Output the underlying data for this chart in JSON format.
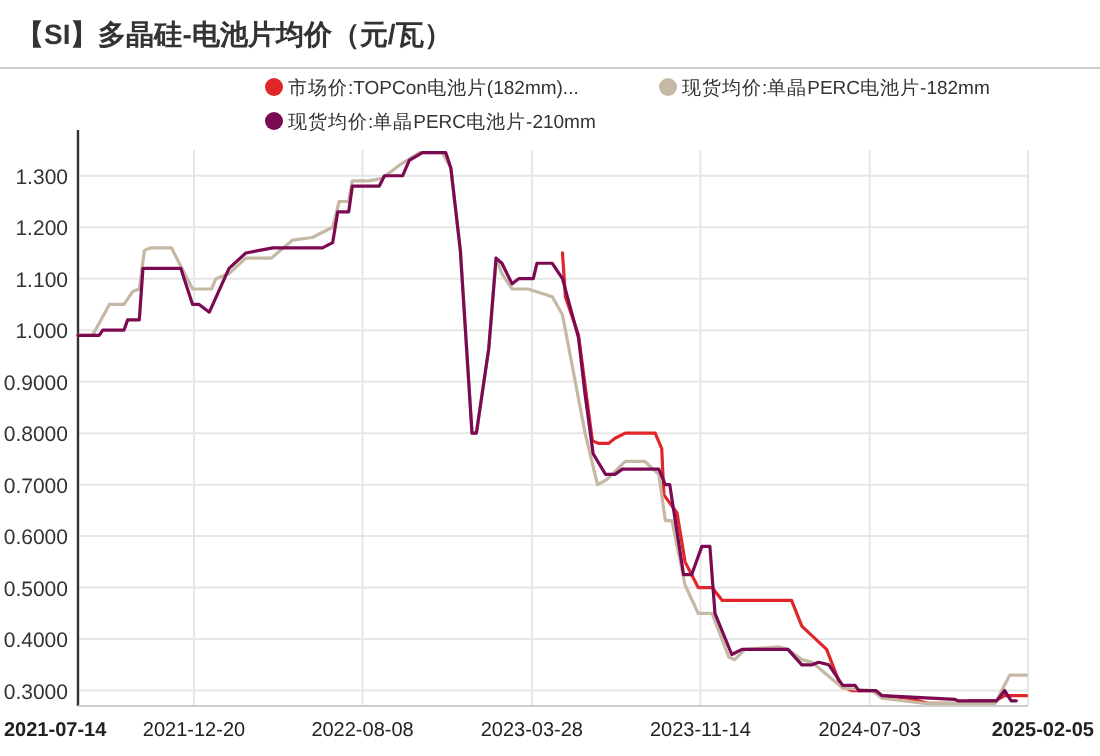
{
  "chart_data": {
    "type": "line",
    "title": "【SI】多晶硅-电池片均价（元/瓦）",
    "xlim": [
      "2021-07-14",
      "2025-02-05"
    ],
    "xticks": [
      "2021-07-14",
      "2021-12-20",
      "2022-08-08",
      "2023-03-28",
      "2023-11-14",
      "2024-07-03",
      "2025-02-05"
    ],
    "ylim": [
      0.27,
      1.35
    ],
    "yticks": [
      {
        "value": 0.3,
        "label": "0.3000"
      },
      {
        "value": 0.4,
        "label": "0.4000"
      },
      {
        "value": 0.5,
        "label": "0.5000"
      },
      {
        "value": 0.6,
        "label": "0.6000"
      },
      {
        "value": 0.7,
        "label": "0.7000"
      },
      {
        "value": 0.8,
        "label": "0.8000"
      },
      {
        "value": 0.9,
        "label": "0.9000"
      },
      {
        "value": 1.0,
        "label": "1.000"
      },
      {
        "value": 1.1,
        "label": "1.100"
      },
      {
        "value": 1.2,
        "label": "1.200"
      },
      {
        "value": 1.3,
        "label": "1.300"
      }
    ],
    "grid": true,
    "legend": "top",
    "line_style": "solid",
    "marker": "none",
    "series": [
      {
        "name": "市场价:TOPCon电池片(182mm)...",
        "color": "#e0262a",
        "x": [
          "2023-05-09",
          "2023-05-13",
          "2023-05-31",
          "2023-06-19",
          "2023-06-28",
          "2023-07-11",
          "2023-07-20",
          "2023-08-03",
          "2023-09-13",
          "2023-09-22",
          "2023-09-25",
          "2023-10-13",
          "2023-10-24",
          "2023-11-11",
          "2023-11-30",
          "2023-12-14",
          "2024-03-18",
          "2024-04-01",
          "2024-05-05",
          "2024-05-24",
          "2024-06-08",
          "2024-07-11",
          "2024-07-20",
          "2024-08-25",
          "2024-09-21",
          "2024-11-11",
          "2024-11-15",
          "2024-12-22",
          "2025-01-04",
          "2025-02-03"
        ],
        "values": [
          1.15,
          1.065,
          0.99,
          0.785,
          0.78,
          0.78,
          0.79,
          0.8,
          0.8,
          0.77,
          0.68,
          0.645,
          0.55,
          0.5,
          0.5,
          0.475,
          0.475,
          0.425,
          0.38,
          0.31,
          0.3,
          0.3,
          0.29,
          0.285,
          0.275,
          0.275,
          0.28,
          0.28,
          0.29,
          0.29
        ]
      },
      {
        "name": "现货均价:单晶PERC电池片-182mm",
        "color": "#c5b8a5",
        "x": [
          "2021-07-14",
          "2021-08-03",
          "2021-08-26",
          "2021-09-15",
          "2021-09-27",
          "2021-10-06",
          "2021-10-13",
          "2021-10-22",
          "2021-11-19",
          "2021-12-18",
          "2022-01-13",
          "2022-01-19",
          "2022-02-06",
          "2022-03-01",
          "2022-04-05",
          "2022-05-04",
          "2022-05-31",
          "2022-06-28",
          "2022-07-07",
          "2022-07-20",
          "2022-07-25",
          "2022-08-17",
          "2022-09-04",
          "2022-09-27",
          "2022-10-25",
          "2022-11-25",
          "2022-12-07",
          "2022-12-20",
          "2023-01-05",
          "2023-01-11",
          "2023-01-28",
          "2023-02-07",
          "2023-02-15",
          "2023-03-01",
          "2023-03-23",
          "2023-04-25",
          "2023-05-09",
          "2023-06-09",
          "2023-06-26",
          "2023-07-09",
          "2023-08-03",
          "2023-08-30",
          "2023-09-18",
          "2023-09-27",
          "2023-10-06",
          "2023-10-24",
          "2023-11-11",
          "2023-11-30",
          "2023-12-23",
          "2023-12-31",
          "2024-01-14",
          "2024-02-29",
          "2024-03-13",
          "2024-04-01",
          "2024-04-15",
          "2024-05-27",
          "2024-07-06",
          "2024-07-20",
          "2024-09-17",
          "2024-11-11",
          "2024-12-22",
          "2024-12-31",
          "2025-01-11",
          "2025-02-03"
        ],
        "values": [
          0.99,
          0.99,
          1.05,
          1.05,
          1.075,
          1.08,
          1.155,
          1.16,
          1.16,
          1.08,
          1.08,
          1.1,
          1.11,
          1.14,
          1.14,
          1.175,
          1.18,
          1.2,
          1.25,
          1.25,
          1.29,
          1.29,
          1.295,
          1.32,
          1.345,
          1.345,
          1.315,
          1.155,
          0.8,
          0.8,
          0.965,
          1.14,
          1.11,
          1.08,
          1.08,
          1.065,
          1.03,
          0.8,
          0.7,
          0.71,
          0.745,
          0.745,
          0.72,
          0.63,
          0.63,
          0.505,
          0.45,
          0.45,
          0.365,
          0.36,
          0.38,
          0.385,
          0.38,
          0.36,
          0.355,
          0.305,
          0.3,
          0.285,
          0.275,
          0.275,
          0.275,
          0.3,
          0.33,
          0.33
        ]
      },
      {
        "name": "现货均价:单晶PERC电池片-210mm",
        "color": "#7b0a52",
        "x": [
          "2021-07-14",
          "2021-08-12",
          "2021-08-17",
          "2021-09-15",
          "2021-09-20",
          "2021-10-06",
          "2021-10-11",
          "2021-12-02",
          "2021-12-18",
          "2021-12-27",
          "2022-01-10",
          "2022-02-06",
          "2022-03-01",
          "2022-04-07",
          "2022-06-14",
          "2022-06-28",
          "2022-07-05",
          "2022-07-20",
          "2022-07-25",
          "2022-08-31",
          "2022-09-07",
          "2022-10-02",
          "2022-10-11",
          "2022-10-29",
          "2022-11-30",
          "2022-12-07",
          "2022-12-20",
          "2023-01-05",
          "2023-01-11",
          "2023-01-28",
          "2023-02-07",
          "2023-02-15",
          "2023-03-01",
          "2023-03-10",
          "2023-03-30",
          "2023-04-04",
          "2023-04-25",
          "2023-05-09",
          "2023-05-31",
          "2023-06-09",
          "2023-06-20",
          "2023-07-07",
          "2023-07-20",
          "2023-07-30",
          "2023-09-18",
          "2023-09-27",
          "2023-10-03",
          "2023-10-22",
          "2023-11-02",
          "2023-11-16",
          "2023-11-27",
          "2023-12-04",
          "2023-12-27",
          "2024-01-10",
          "2024-03-13",
          "2024-04-01",
          "2024-04-15",
          "2024-04-24",
          "2024-05-08",
          "2024-05-27",
          "2024-06-13",
          "2024-06-18",
          "2024-07-11",
          "2024-07-20",
          "2024-10-28",
          "2024-11-01",
          "2024-12-24",
          "2025-01-04",
          "2025-01-13",
          "2025-01-20"
        ],
        "values": [
          0.99,
          0.99,
          1.0,
          1.0,
          1.02,
          1.02,
          1.12,
          1.12,
          1.05,
          1.05,
          1.035,
          1.12,
          1.15,
          1.16,
          1.16,
          1.17,
          1.23,
          1.23,
          1.28,
          1.28,
          1.3,
          1.3,
          1.33,
          1.345,
          1.345,
          1.315,
          1.155,
          0.8,
          0.8,
          0.965,
          1.14,
          1.13,
          1.09,
          1.1,
          1.1,
          1.13,
          1.13,
          1.1,
          0.985,
          0.875,
          0.76,
          0.72,
          0.72,
          0.73,
          0.73,
          0.7,
          0.7,
          0.525,
          0.525,
          0.58,
          0.58,
          0.45,
          0.37,
          0.38,
          0.38,
          0.35,
          0.35,
          0.355,
          0.35,
          0.31,
          0.31,
          0.3,
          0.3,
          0.29,
          0.283,
          0.28,
          0.28,
          0.3,
          0.28,
          0.28
        ]
      }
    ]
  }
}
